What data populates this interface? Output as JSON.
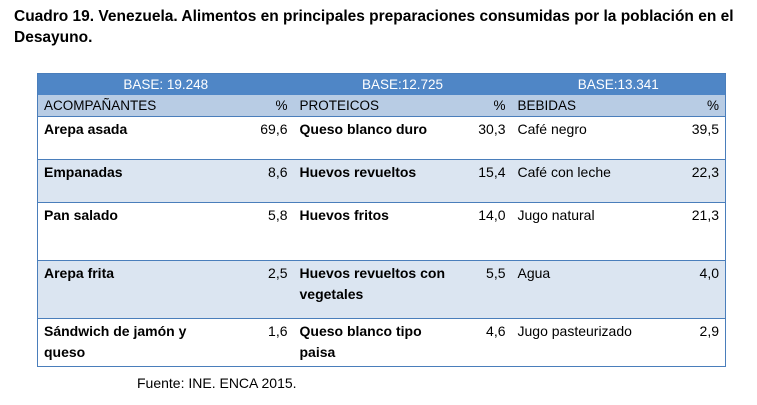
{
  "caption": "Cuadro 19. Venezuela.  Alimentos en principales  preparaciones consumidas por la población en el Desayuno.",
  "bases": [
    "BASE: 19.248",
    "BASE:12.725",
    "BASE:13.341"
  ],
  "headers": {
    "acompanantes": "ACOMPAÑANTES",
    "proteicos": "PROTEICOS",
    "bebidas": "BEBIDAS",
    "pct": "%"
  },
  "rows": [
    {
      "acomp": "Arepa asada",
      "acomp_pct": "69,6",
      "prot": "Queso blanco duro",
      "prot_pct": "30,3",
      "beb": "Café negro",
      "beb_pct": "39,5"
    },
    {
      "acomp": "Empanadas",
      "acomp_pct": "8,6",
      "prot": "Huevos revueltos",
      "prot_pct": "15,4",
      "beb": "Café con leche",
      "beb_pct": "22,3"
    },
    {
      "acomp": "Pan salado",
      "acomp_pct": "5,8",
      "prot": "Huevos fritos",
      "prot_pct": "14,0",
      "beb": "Jugo natural",
      "beb_pct": "21,3"
    },
    {
      "acomp": "Arepa frita",
      "acomp_pct": "2,5",
      "prot": "Huevos revueltos con vegetales",
      "prot_pct": "5,5",
      "beb": "Agua",
      "beb_pct": "4,0"
    },
    {
      "acomp": "Sándwich de jamón y queso",
      "acomp_pct": "1,6",
      "prot": "Queso blanco tipo paisa",
      "prot_pct": "4,6",
      "beb": "Jugo pasteurizado",
      "beb_pct": "2,9"
    }
  ],
  "source": "Fuente: INE. ENCA 2015."
}
